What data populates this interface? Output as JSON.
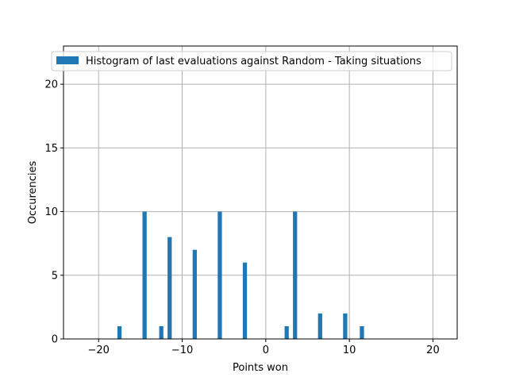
{
  "chart_data": {
    "type": "bar",
    "title": "",
    "xlabel": "Points won",
    "ylabel": "Occurencies",
    "xlim": [
      -24.2,
      22.9
    ],
    "ylim": [
      0,
      23
    ],
    "xticks": [
      -20,
      -10,
      0,
      10,
      20
    ],
    "yticks": [
      0,
      5,
      10,
      15,
      20
    ],
    "grid": true,
    "legend_position": "top-center",
    "bin_width": 1,
    "series": [
      {
        "name": "Histogram of last evaluations against Random - Taking situations",
        "color": "#1f77b4",
        "bins": [
          {
            "x": -17.5,
            "value": 1
          },
          {
            "x": -14.5,
            "value": 10
          },
          {
            "x": -12.5,
            "value": 1
          },
          {
            "x": -11.5,
            "value": 8
          },
          {
            "x": -8.5,
            "value": 7
          },
          {
            "x": -5.5,
            "value": 10
          },
          {
            "x": -2.5,
            "value": 6
          },
          {
            "x": 2.5,
            "value": 1
          },
          {
            "x": 3.5,
            "value": 10
          },
          {
            "x": 6.5,
            "value": 2
          },
          {
            "x": 9.5,
            "value": 2
          },
          {
            "x": 11.5,
            "value": 1
          }
        ]
      }
    ]
  }
}
